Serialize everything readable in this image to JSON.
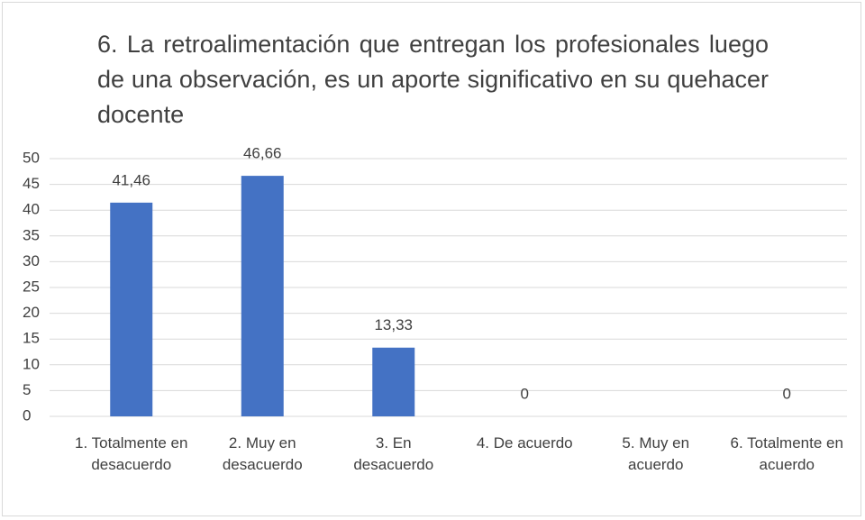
{
  "chart_data": {
    "type": "bar",
    "title": "6. La retroalimentación que entregan los profesionales luego de una observación, es un aporte significativo en su quehacer docente",
    "categories": [
      "1. Totalmente en desacuerdo",
      "2. Muy en desacuerdo",
      "3. En desacuerdo",
      "4. De acuerdo",
      "5. Muy en acuerdo",
      "6. Totalmente en acuerdo"
    ],
    "values": [
      41.46,
      46.66,
      13.33,
      0,
      null,
      0
    ],
    "value_labels": [
      "41,46",
      "46,66",
      "13,33",
      "0",
      null,
      "0"
    ],
    "color": "#4472c4",
    "ylim": [
      0,
      50
    ],
    "yticks": [
      0,
      5,
      10,
      15,
      20,
      25,
      30,
      35,
      40,
      45,
      50
    ],
    "grid": true
  }
}
